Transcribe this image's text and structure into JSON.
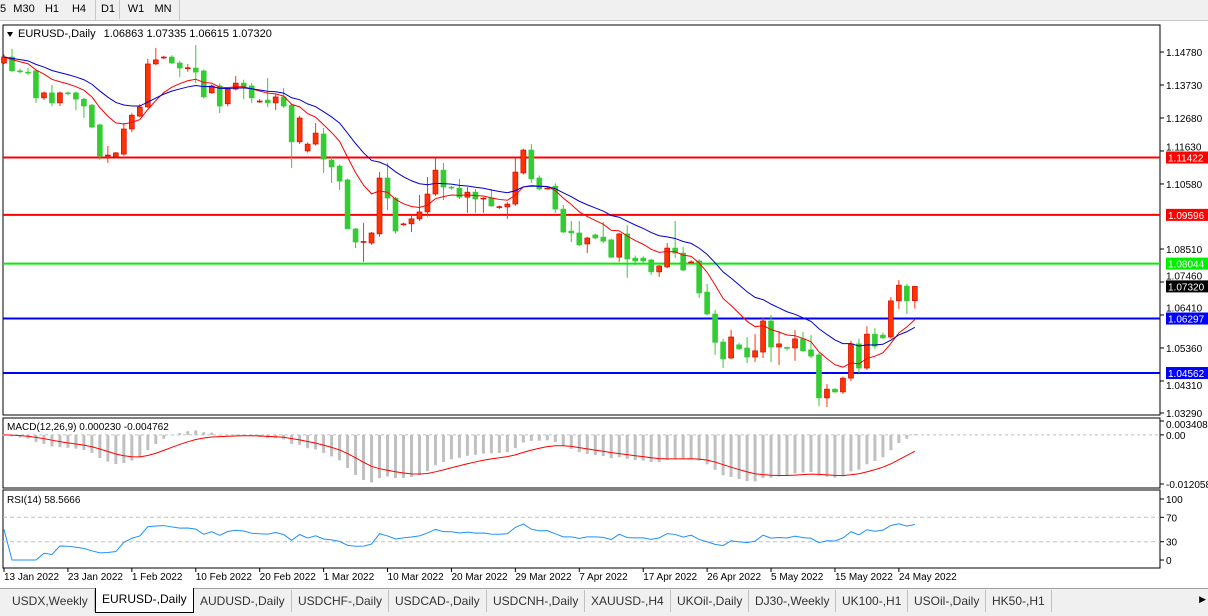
{
  "toolbar": {
    "timeframes": [
      "5",
      "M30",
      "H1",
      "H4",
      "D1",
      "W1",
      "MN"
    ],
    "active": "D1"
  },
  "chart": {
    "title": "EURUSD-,Daily",
    "ohlc_text": "1.06863 1.07335 1.06615 1.07320",
    "colors": {
      "bull": "#ff3300",
      "bear": "#33cc33",
      "ma_fast": "#ff0000",
      "ma_slow": "#0000cc",
      "macd_hist": "#c0c0c0",
      "macd_signal": "#ff0000",
      "rsi": "#1e90ff"
    },
    "price_ticks": [
      "1.14780",
      "1.13730",
      "1.12680",
      "1.11630",
      "1.10580",
      "1.08510",
      "1.07460",
      "1.06410",
      "1.05360",
      "1.04310",
      "1.03290"
    ],
    "price_range": [
      1.0329,
      1.1478
    ],
    "current_price": {
      "value": "1.07320",
      "color": "#000000"
    },
    "levels": [
      {
        "value": "1.11422",
        "color": "#ff0000"
      },
      {
        "value": "1.09596",
        "color": "#ff0000"
      },
      {
        "value": "1.08044",
        "color": "#00ee00"
      },
      {
        "value": "1.06297",
        "color": "#0000ff"
      },
      {
        "value": "1.04562",
        "color": "#0000ff"
      }
    ],
    "date_labels": [
      "13 Jan 2022",
      "23 Jan 2022",
      "1 Feb 2022",
      "10 Feb 2022",
      "20 Feb 2022",
      "1 Mar 2022",
      "10 Mar 2022",
      "20 Mar 2022",
      "29 Mar 2022",
      "7 Apr 2022",
      "17 Apr 2022",
      "26 Apr 2022",
      "5 May 2022",
      "15 May 2022",
      "24 May 2022"
    ]
  },
  "chart_data": {
    "type": "candlestick",
    "ohlc": [
      [
        1.1443,
        1.147,
        1.144,
        1.1462
      ],
      [
        1.1462,
        1.1488,
        1.1415,
        1.1418
      ],
      [
        1.1418,
        1.1425,
        1.141,
        1.1416
      ],
      [
        1.1414,
        1.1428,
        1.1405,
        1.1412
      ],
      [
        1.1418,
        1.1422,
        1.1316,
        1.1332
      ],
      [
        1.1332,
        1.1352,
        1.1325,
        1.1348
      ],
      [
        1.1348,
        1.1373,
        1.1306,
        1.1316
      ],
      [
        1.1316,
        1.1352,
        1.1306,
        1.1348
      ],
      [
        1.1348,
        1.1352,
        1.134,
        1.1346
      ],
      [
        1.1348,
        1.1352,
        1.1293,
        1.1328
      ],
      [
        1.1328,
        1.1332,
        1.1268,
        1.1306
      ],
      [
        1.1309,
        1.1313,
        1.1235,
        1.1239
      ],
      [
        1.1246,
        1.125,
        1.1134,
        1.1147
      ],
      [
        1.1147,
        1.1179,
        1.1125,
        1.115
      ],
      [
        1.1144,
        1.116,
        1.114,
        1.1157
      ],
      [
        1.1153,
        1.1252,
        1.1148,
        1.1233
      ],
      [
        1.1233,
        1.1283,
        1.1223,
        1.1277
      ],
      [
        1.1274,
        1.1312,
        1.127,
        1.1303
      ],
      [
        1.1303,
        1.1456,
        1.13,
        1.144
      ],
      [
        1.144,
        1.1491,
        1.1436,
        1.1453
      ],
      [
        1.146,
        1.1466,
        1.1455,
        1.1462
      ],
      [
        1.1462,
        1.1468,
        1.144,
        1.1443
      ],
      [
        1.1443,
        1.145,
        1.1398,
        1.1427
      ],
      [
        1.1425,
        1.144,
        1.1415,
        1.1428
      ],
      [
        1.1427,
        1.15,
        1.1379,
        1.1414
      ],
      [
        1.1418,
        1.1422,
        1.133,
        1.1335
      ],
      [
        1.1348,
        1.1375,
        1.1345,
        1.137
      ],
      [
        1.137,
        1.1378,
        1.1284,
        1.1306
      ],
      [
        1.1313,
        1.1365,
        1.1305,
        1.136
      ],
      [
        1.136,
        1.1402,
        1.1356,
        1.1379
      ],
      [
        1.1379,
        1.139,
        1.1328,
        1.1367
      ],
      [
        1.137,
        1.138,
        1.1316,
        1.1332
      ],
      [
        1.1322,
        1.1328,
        1.1316,
        1.1322
      ],
      [
        1.1325,
        1.1395,
        1.1303,
        1.1316
      ],
      [
        1.1316,
        1.1345,
        1.1293,
        1.1335
      ],
      [
        1.1335,
        1.1363,
        1.13,
        1.1306
      ],
      [
        1.1309,
        1.1313,
        1.1109,
        1.1192
      ],
      [
        1.1192,
        1.1275,
        1.1185,
        1.1268
      ],
      [
        1.1163,
        1.119,
        1.1158,
        1.1185
      ],
      [
        1.1185,
        1.1252,
        1.118,
        1.122
      ],
      [
        1.1217,
        1.1236,
        1.1093,
        1.1137
      ],
      [
        1.1134,
        1.1147,
        1.1061,
        1.1112
      ],
      [
        1.1115,
        1.112,
        1.1039,
        1.1067
      ],
      [
        1.1071,
        1.1075,
        1.0915,
        1.0915
      ],
      [
        1.0915,
        1.0918,
        1.0854,
        1.0873
      ],
      [
        1.0873,
        1.0934,
        1.081,
        1.0875
      ],
      [
        1.087,
        1.0905,
        1.0864,
        1.0902
      ],
      [
        1.0899,
        1.1096,
        1.089,
        1.1077
      ],
      [
        1.1077,
        1.1125,
        1.0975,
        1.1013
      ],
      [
        1.1013,
        1.1016,
        1.09,
        1.0908
      ],
      [
        1.0928,
        1.0935,
        1.0925,
        1.0931
      ],
      [
        1.0931,
        1.096,
        1.0905,
        1.0947
      ],
      [
        1.0947,
        1.1023,
        1.094,
        1.0969
      ],
      [
        1.0969,
        1.108,
        1.0954,
        1.1026
      ],
      [
        1.1026,
        1.114,
        1.102,
        1.1102
      ],
      [
        1.1102,
        1.1125,
        1.1007,
        1.1048
      ],
      [
        1.1048,
        1.1052,
        1.104,
        1.1045
      ],
      [
        1.1045,
        1.1074,
        1.101,
        1.1016
      ],
      [
        1.1016,
        1.1048,
        1.0966,
        1.1032
      ],
      [
        1.1032,
        1.1042,
        1.0966,
        1.101
      ],
      [
        1.1011,
        1.1016,
        1.0966,
        1.1013
      ],
      [
        1.1013,
        1.1042,
        1.0985,
        1.0988
      ],
      [
        1.0983,
        1.099,
        1.0978,
        1.0986
      ],
      [
        1.0985,
        1.1,
        1.0947,
        1.0994
      ],
      [
        1.0994,
        1.114,
        1.0988,
        1.1096
      ],
      [
        1.1093,
        1.117,
        1.1088,
        1.1166
      ],
      [
        1.1166,
        1.1185,
        1.1061,
        1.1074
      ],
      [
        1.1077,
        1.1085,
        1.1038,
        1.1042
      ],
      [
        1.1042,
        1.105,
        1.104,
        1.1045
      ],
      [
        1.1051,
        1.106,
        1.0966,
        1.0978
      ],
      [
        1.0978,
        1.0991,
        1.0902,
        1.0905
      ],
      [
        1.0908,
        1.094,
        1.0873,
        1.0902
      ],
      [
        1.0902,
        1.094,
        1.086,
        1.0864
      ],
      [
        1.0867,
        1.089,
        1.0838,
        1.0886
      ],
      [
        1.0896,
        1.09,
        1.0882,
        1.0886
      ],
      [
        1.0889,
        1.0937,
        1.087,
        1.0876
      ],
      [
        1.088,
        1.0884,
        1.0822,
        1.0825
      ],
      [
        1.0825,
        1.0903,
        1.081,
        1.0899
      ],
      [
        1.0899,
        1.0927,
        1.0759,
        1.0819
      ],
      [
        1.0822,
        1.083,
        1.08,
        1.0813
      ],
      [
        1.0822,
        1.0828,
        1.0808,
        1.0813
      ],
      [
        1.0816,
        1.082,
        1.0768,
        1.0778
      ],
      [
        1.0778,
        1.08,
        1.0762,
        1.0797
      ],
      [
        1.0794,
        1.087,
        1.079,
        1.0854
      ],
      [
        1.0854,
        1.094,
        1.0822,
        1.0838
      ],
      [
        1.0838,
        1.0858,
        1.078,
        1.0784
      ],
      [
        1.0808,
        1.0815,
        1.0805,
        1.081
      ],
      [
        1.0813,
        1.0818,
        1.0695,
        1.0711
      ],
      [
        1.0714,
        1.074,
        1.064,
        1.0644
      ],
      [
        1.0644,
        1.0657,
        1.0514,
        1.0554
      ],
      [
        1.0555,
        1.0565,
        1.0472,
        1.0501
      ],
      [
        1.0504,
        1.0593,
        1.05,
        1.0571
      ],
      [
        1.0546,
        1.0552,
        1.053,
        1.0533
      ],
      [
        1.0536,
        1.0571,
        1.0488,
        1.0507
      ],
      [
        1.0507,
        1.058,
        1.0491,
        1.0527
      ],
      [
        1.0523,
        1.0631,
        1.0504,
        1.0622
      ],
      [
        1.0622,
        1.0641,
        1.0491,
        1.0539
      ],
      [
        1.0539,
        1.059,
        1.0482,
        1.0549
      ],
      [
        1.0538,
        1.054,
        1.0528,
        1.0536
      ],
      [
        1.0536,
        1.0593,
        1.0495,
        1.0565
      ],
      [
        1.0565,
        1.0587,
        1.0523,
        1.0527
      ],
      [
        1.053,
        1.0577,
        1.0504,
        1.051
      ],
      [
        1.0514,
        1.052,
        1.0351,
        1.0377
      ],
      [
        1.0377,
        1.0421,
        1.0348,
        1.0405
      ],
      [
        1.0405,
        1.0408,
        1.0393,
        1.0396
      ],
      [
        1.0396,
        1.0445,
        1.039,
        1.044
      ],
      [
        1.044,
        1.0559,
        1.0431,
        1.0549
      ],
      [
        1.0549,
        1.0565,
        1.0456,
        1.0472
      ],
      [
        1.0472,
        1.0605,
        1.0466,
        1.058
      ],
      [
        1.058,
        1.0599,
        1.0533,
        1.0542
      ],
      [
        1.0577,
        1.0585,
        1.0565,
        1.0568
      ],
      [
        1.0571,
        1.0698,
        1.0565,
        1.0686
      ],
      [
        1.0686,
        1.0752,
        1.066,
        1.0736
      ],
      [
        1.0733,
        1.074,
        1.0644,
        1.0686
      ],
      [
        1.06863,
        1.07335,
        1.06615,
        1.0732
      ]
    ],
    "moving_averages": [
      {
        "type": "EMA",
        "period": 10
      },
      {
        "type": "EMA",
        "period": 20
      }
    ],
    "grid": false
  },
  "macd": {
    "label": "MACD(12,26,9) 0.000230 -0.004762",
    "ticks": [
      "0.003408",
      "0.00",
      "-0.012058"
    ],
    "range": [
      -0.012058,
      0.003408
    ]
  },
  "rsi": {
    "label": "RSI(14) 58.5666",
    "ticks": [
      "100",
      "70",
      "30",
      "0"
    ],
    "levels": [
      70,
      30
    ]
  },
  "tabs": [
    {
      "label": "USDX,Weekly",
      "active": false
    },
    {
      "label": "EURUSD-,Daily",
      "active": true
    },
    {
      "label": "AUDUSD-,Daily",
      "active": false
    },
    {
      "label": "USDCHF-,Daily",
      "active": false
    },
    {
      "label": "USDCAD-,Daily",
      "active": false
    },
    {
      "label": "USDCNH-,Daily",
      "active": false
    },
    {
      "label": "XAUUSD-,H4",
      "active": false
    },
    {
      "label": "UKOil-,Daily",
      "active": false
    },
    {
      "label": "DJ30-,Weekly",
      "active": false
    },
    {
      "label": "UK100-,H1",
      "active": false
    },
    {
      "label": "USOil-,Daily",
      "active": false
    },
    {
      "label": "HK50-,H1",
      "active": false
    }
  ],
  "tabs_scroll_icon": "triangle-right-icon"
}
